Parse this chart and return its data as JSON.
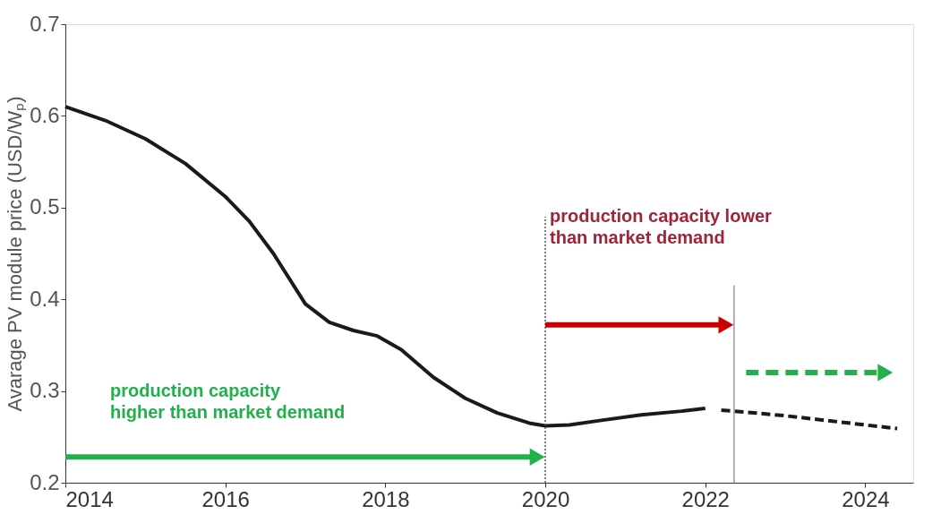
{
  "chart_data": {
    "type": "line",
    "ylabel": "Avarage PV module price (USD/Wₚ)",
    "xlim": [
      2014,
      2024.6
    ],
    "xticks": [
      2014,
      2016,
      2018,
      2020,
      2022,
      2024
    ],
    "ylim": [
      0.2,
      0.7
    ],
    "yticks": [
      0.2,
      0.3,
      0.4,
      0.5,
      0.6,
      0.7
    ],
    "grid": false,
    "marker": "none",
    "series": [
      {
        "color": "#1a1a1a",
        "line_style": "solid",
        "x": [
          2014,
          2014.5,
          2015,
          2015.5,
          2016,
          2016.3,
          2016.6,
          2017,
          2017.3,
          2017.6,
          2017.9,
          2018.2,
          2018.6,
          2019,
          2019.4,
          2019.8,
          2020,
          2020.3,
          2020.7,
          2021.2,
          2021.7,
          2022
        ],
        "values": [
          0.61,
          0.595,
          0.575,
          0.548,
          0.512,
          0.485,
          0.45,
          0.395,
          0.375,
          0.366,
          0.36,
          0.345,
          0.315,
          0.292,
          0.276,
          0.265,
          0.262,
          0.263,
          0.268,
          0.274,
          0.278,
          0.281
        ]
      },
      {
        "color": "#1a1a1a",
        "line_style": "dashed",
        "x": [
          2022.2,
          2022.5,
          2023,
          2023.5,
          2024,
          2024.4
        ],
        "values": [
          0.279,
          0.277,
          0.273,
          0.268,
          0.263,
          0.259
        ]
      }
    ],
    "ref_lines": [
      {
        "axis": "x",
        "value": 2020,
        "color": "#555555",
        "line_style": "dotted"
      },
      {
        "axis": "x",
        "value": 2022.36,
        "color": "#999999",
        "line_style": "solid"
      }
    ],
    "annotations": [
      "production capacity lower\nthan market demand",
      "production capacity\nhigher than market demand"
    ]
  }
}
